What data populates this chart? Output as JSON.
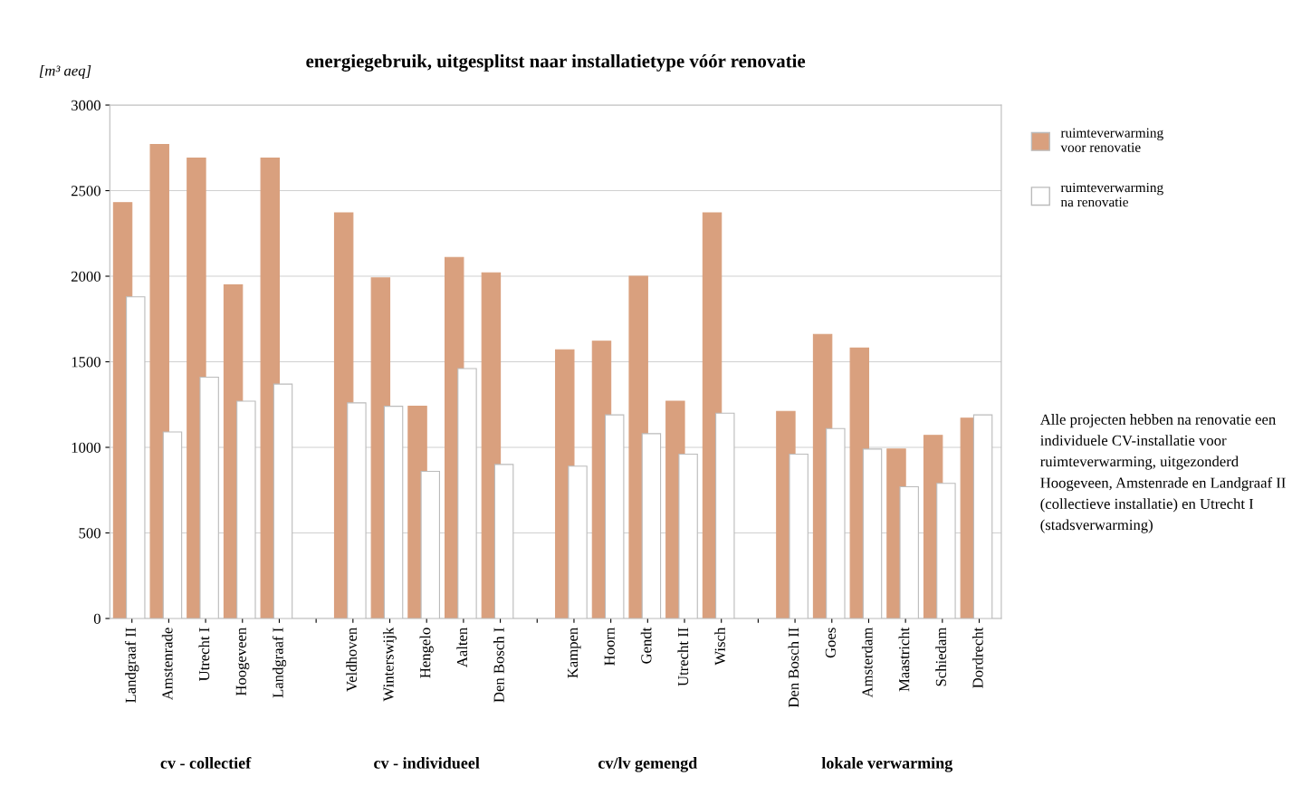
{
  "chart_data": {
    "type": "bar",
    "title": "energiegebruik, uitgesplitst naar installatietype vóór renovatie",
    "ylabel": "[m³ aeq]",
    "categories": [
      "Landgraaf II",
      "Amstenrade",
      "Utrecht I",
      "Hoogeveen",
      "Landgraaf I",
      null,
      "Veldhoven",
      "Winterswijk",
      "Hengelo",
      "Aalten",
      "Den Bosch I",
      null,
      "Kampen",
      "Hoorn",
      "Gendt",
      "Utrecht II",
      "Wisch",
      null,
      "Den Bosch II",
      "Goes",
      "Amsterdam",
      "Maastricht",
      "Schiedam",
      "Dordrecht"
    ],
    "series": [
      {
        "name": "ruimteverwarming\nvoor renovatie",
        "color": "#d9a07e",
        "values": [
          2430,
          2770,
          2690,
          1950,
          2690,
          null,
          2370,
          1990,
          1240,
          2110,
          2020,
          null,
          1570,
          1620,
          2000,
          1270,
          2370,
          null,
          1210,
          1660,
          1580,
          990,
          1070,
          1170
        ]
      },
      {
        "name": "ruimteverwarming\nna renovatie",
        "color": "#ffffff",
        "values": [
          1880,
          1090,
          1410,
          1270,
          1370,
          null,
          1260,
          1240,
          860,
          1460,
          900,
          null,
          890,
          1190,
          1080,
          960,
          1200,
          null,
          960,
          1110,
          990,
          770,
          790,
          1190
        ]
      }
    ],
    "ylim": [
      0,
      3000
    ],
    "yticks": [
      0,
      500,
      1000,
      1500,
      2000,
      2500,
      3000
    ],
    "grid": "y",
    "legend": "top right",
    "annotations": [
      "cv - collectief",
      "cv - individueel",
      "cv/lv gemengd",
      "lokale verwarming",
      "Alle projecten hebben na renovatie een individuele CV-installatie voor ruimteverwarming, uitgezonderd Hoogeveen, Amstenrade en Landgraaf II (collectieve installatie) en Utrecht I (stadsverwarming)"
    ]
  }
}
